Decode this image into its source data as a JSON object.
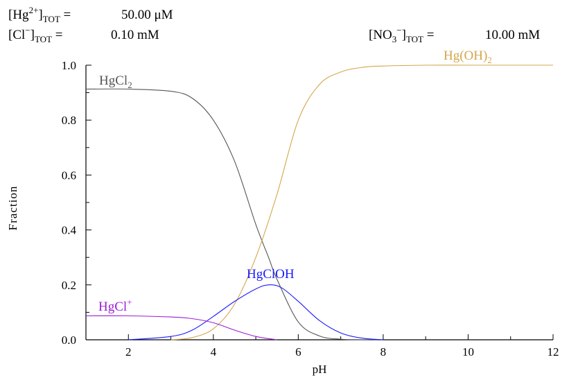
{
  "header": {
    "hg_total": {
      "label": "Hg",
      "charge": "2+",
      "sub": "TOT",
      "eq": " =",
      "value": "50.00 μM"
    },
    "cl_total": {
      "label": "Cl",
      "charge": "−",
      "sub": "TOT",
      "eq": " =",
      "value": "0.10 mM"
    },
    "no3_total": {
      "label": "NO",
      "label_sub": "3",
      "charge": "−",
      "sub": "TOT",
      "eq": " =",
      "value": "10.00 mM"
    }
  },
  "chart_data": {
    "type": "line",
    "title": "",
    "xlabel": "pH",
    "ylabel": "Fraction",
    "xlim": [
      1,
      12
    ],
    "ylim": [
      0,
      1
    ],
    "x_ticks": [
      2,
      4,
      6,
      8,
      10,
      12
    ],
    "y_ticks": [
      0.0,
      0.2,
      0.4,
      0.6,
      0.8,
      1.0
    ],
    "y_tick_labels": [
      "0.0",
      "0.2",
      "0.4",
      "0.6",
      "0.8",
      "1.0"
    ],
    "grid": false,
    "series": [
      {
        "name": "HgCl2",
        "label_main": "HgCl",
        "label_sub": "2",
        "color": "#555555",
        "x": [
          1.0,
          2.0,
          3.0,
          3.5,
          4.0,
          4.5,
          5.0,
          5.3,
          5.5,
          6.0,
          6.5,
          7.0,
          7.5,
          8.0
        ],
        "y": [
          0.913,
          0.913,
          0.905,
          0.88,
          0.8,
          0.65,
          0.42,
          0.3,
          0.22,
          0.065,
          0.014,
          0.002,
          0.0,
          0.0
        ]
      },
      {
        "name": "Hg(OH)2",
        "label_main": "Hg(OH)",
        "label_sub": "2",
        "color": "#d4a64a",
        "x": [
          3.0,
          3.5,
          4.0,
          4.5,
          5.0,
          5.5,
          6.0,
          6.5,
          7.0,
          7.5,
          8.0,
          9.0,
          10.0,
          12.0
        ],
        "y": [
          0.0,
          0.008,
          0.04,
          0.13,
          0.3,
          0.53,
          0.8,
          0.93,
          0.975,
          0.992,
          0.997,
          1.0,
          1.0,
          1.0
        ]
      },
      {
        "name": "HgClOH",
        "label_main": "HgClOH",
        "label_sub": "",
        "color": "#1a1aff",
        "x": [
          2.0,
          3.0,
          3.5,
          4.0,
          4.5,
          5.0,
          5.3,
          5.6,
          6.0,
          6.5,
          7.0,
          7.5,
          8.0
        ],
        "y": [
          0.0,
          0.012,
          0.035,
          0.085,
          0.14,
          0.185,
          0.2,
          0.19,
          0.14,
          0.07,
          0.025,
          0.006,
          0.0
        ]
      },
      {
        "name": "HgCl+",
        "label_main": "HgCl",
        "label_sup": "+",
        "label_sub": "",
        "color": "#9a1fd6",
        "x": [
          1.0,
          2.0,
          3.0,
          3.5,
          4.0,
          4.5,
          5.0,
          5.5
        ],
        "y": [
          0.087,
          0.087,
          0.083,
          0.077,
          0.062,
          0.035,
          0.012,
          0.0
        ]
      }
    ]
  }
}
